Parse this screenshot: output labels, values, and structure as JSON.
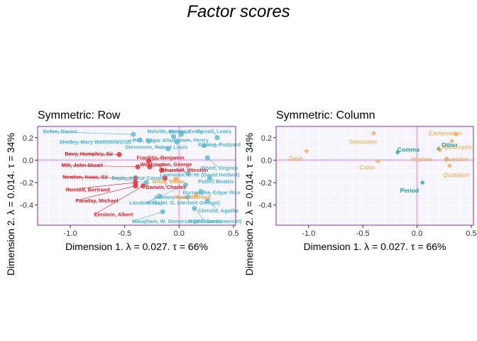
{
  "title": "Factor scores",
  "colors": {
    "author_blue": "#4cb5d0",
    "author_red": "#e8161c",
    "author_orange": "#f1a340",
    "punct_orange": "#f1a340",
    "punct_teal": "#1c9b93",
    "frame": "#7b3294",
    "origin_line": "#e7c8ec",
    "grid": "#ffffff",
    "panel_bg": "#f7f5fc"
  },
  "chart_data": [
    {
      "type": "scatter",
      "title": "Symmetric: Row",
      "xlabel": "Dimension 1.   λ = 0.027.  τ = 66%",
      "ylabel": "Dimension 2.   λ = 0.014.  τ = 34%",
      "xlim": [
        -1.3,
        0.52
      ],
      "ylim": [
        -0.58,
        0.3
      ],
      "xticks": [
        -1.0,
        -0.5,
        0.0,
        0.5
      ],
      "xtick_labels": [
        "-1.0",
        "-0.5",
        "0.0",
        "0.5"
      ],
      "yticks": [
        -0.4,
        -0.2,
        0.0,
        0.2
      ],
      "ytick_labels": [
        "-0.4",
        "-0.2",
        "0.0",
        "0.2"
      ],
      "grid": true,
      "points": [
        {
          "label": "Defoe, Daniel",
          "x": -0.42,
          "y": 0.23,
          "lx": -1.25,
          "ly": 0.255,
          "color": "blue"
        },
        {
          "label": "Melville, Herman",
          "x": -0.05,
          "y": 0.21,
          "lx": -0.1,
          "ly": 0.255,
          "color": "blue"
        },
        {
          "label": "Bronte, Emily",
          "x": 0.02,
          "y": 0.23,
          "lx": 0.06,
          "ly": 0.255,
          "color": "blue"
        },
        {
          "label": "Carroll, Lewis",
          "x": 0.35,
          "y": 0.2,
          "lx": 0.32,
          "ly": 0.255,
          "color": "blue"
        },
        {
          "label": "Shelley, Mary Wollstonecraft",
          "x": -0.36,
          "y": 0.18,
          "lx": -1.1,
          "ly": 0.16,
          "color": "blue"
        },
        {
          "label": "Poe, Edgar Allan",
          "x": -0.28,
          "y": 0.17,
          "lx": -0.23,
          "ly": 0.175,
          "color": "blue"
        },
        {
          "label": "James, Henry",
          "x": -0.02,
          "y": 0.16,
          "lx": 0.11,
          "ly": 0.18,
          "color": "blue"
        },
        {
          "label": "Kipling, Rudyard",
          "x": 0.23,
          "y": 0.13,
          "lx": 0.37,
          "ly": 0.14,
          "color": "blue"
        },
        {
          "label": "Stevenson, Robert Louis",
          "x": -0.1,
          "y": 0.1,
          "lx": -0.21,
          "ly": 0.115,
          "color": "blue"
        },
        {
          "label": "Davy, Humphry, Sir",
          "x": -0.55,
          "y": 0.05,
          "lx": -1.05,
          "ly": 0.055,
          "color": "red"
        },
        {
          "label": "Franklin, Benjamin",
          "x": -0.28,
          "y": -0.01,
          "lx": -0.17,
          "ly": 0.02,
          "color": "red"
        },
        {
          "label": "Washington, George",
          "x": -0.27,
          "y": -0.06,
          "lx": -0.12,
          "ly": -0.04,
          "color": "red"
        },
        {
          "label": "Mill, John Stuart",
          "x": -0.38,
          "y": -0.06,
          "lx": -1.08,
          "ly": -0.045,
          "color": "red"
        },
        {
          "label": "Churchill, Winston",
          "x": -0.16,
          "y": -0.09,
          "lx": 0.05,
          "ly": -0.09,
          "color": "red"
        },
        {
          "label": "Darwin, Charles",
          "x": -0.13,
          "y": -0.16,
          "lx": -0.12,
          "ly": -0.24,
          "color": "red"
        },
        {
          "label": "Newton, Isaac, Sir",
          "x": -0.4,
          "y": -0.16,
          "lx": -1.07,
          "ly": -0.15,
          "color": "red"
        },
        {
          "label": "Russell, Bertrand",
          "x": -0.4,
          "y": -0.2,
          "lx": -1.04,
          "ly": -0.265,
          "color": "red"
        },
        {
          "label": "Doyle, Arthur Conan",
          "x": -0.3,
          "y": -0.2,
          "lx": -0.62,
          "ly": -0.16,
          "color": "blue"
        },
        {
          "label": "Wells, H. G. (Herbert George)",
          "x": 0.06,
          "y": -0.22,
          "lx": -0.3,
          "ly": -0.38,
          "color": "blue"
        },
        {
          "label": "Lawrence, D. H. (David Herbert)",
          "x": 0.08,
          "y": -0.12,
          "lx": 0.19,
          "ly": -0.13,
          "color": "blue"
        },
        {
          "label": "Wilde, Oscar",
          "x": -0.03,
          "y": -0.17,
          "lx": -0.1,
          "ly": -0.19,
          "color": "orange"
        },
        {
          "label": "Faraday, Michael",
          "x": -0.4,
          "y": -0.23,
          "lx": -0.95,
          "ly": -0.36,
          "color": "red"
        },
        {
          "label": "Einstein, Albert",
          "x": -0.33,
          "y": -0.23,
          "lx": -0.78,
          "ly": -0.485,
          "color": "red"
        },
        {
          "label": "Burroughs, Edgar Rice",
          "x": 0.2,
          "y": -0.28,
          "lx": 0.3,
          "ly": -0.29,
          "color": "blue"
        },
        {
          "label": "Asimov, Isaac",
          "x": 0.08,
          "y": -0.33,
          "lx": -0.07,
          "ly": -0.33,
          "color": "blue"
        },
        {
          "label": "Shaw, Bernard",
          "x": 0.16,
          "y": -0.31,
          "lx": 0.12,
          "ly": -0.33,
          "color": "orange"
        },
        {
          "label": "Christie, Agatha",
          "x": 0.26,
          "y": -0.36,
          "lx": 0.36,
          "ly": -0.45,
          "color": "blue"
        },
        {
          "label": "Maugham, W. Somerset (William Somerset)",
          "x": -0.15,
          "y": -0.46,
          "lx": -0.43,
          "ly": -0.545,
          "color": "blue"
        },
        {
          "label": "Joyce, James",
          "x": 0.14,
          "y": -0.43,
          "lx": 0.24,
          "ly": -0.545,
          "color": "blue"
        },
        {
          "label": "Potter, Beatrix",
          "x": 0.28,
          "y": -0.16,
          "lx": 0.34,
          "ly": -0.19,
          "color": "blue"
        },
        {
          "label": "London, Jack",
          "x": -0.18,
          "y": -0.32,
          "lx": -0.3,
          "ly": -0.38,
          "color": "blue"
        },
        {
          "label": "Woolf, Virginia",
          "x": 0.26,
          "y": 0.02,
          "lx": 0.37,
          "ly": -0.07,
          "color": "blue"
        }
      ]
    },
    {
      "type": "scatter",
      "title": "Symmetric: Column",
      "xlabel": "Dimension 1.   λ = 0.027.  τ = 66%",
      "ylabel": "Dimension 2.   λ = 0.014.  τ = 34%",
      "xlim": [
        -1.3,
        0.52
      ],
      "ylim": [
        -0.58,
        0.3
      ],
      "xticks": [
        -1.0,
        -0.5,
        0.0,
        0.5
      ],
      "xtick_labels": [
        "-1.0",
        "-0.5",
        "0.0",
        "0.5"
      ],
      "yticks": [
        -0.4,
        -0.2,
        0.0,
        0.2
      ],
      "ytick_labels": [
        "-0.4",
        "-0.2",
        "0.0",
        "0.2"
      ],
      "grid": true,
      "points": [
        {
          "label": "Dash",
          "x": -1.02,
          "y": 0.08,
          "lx": -1.12,
          "ly": 0.015,
          "color": "orange"
        },
        {
          "label": "Semicolon",
          "x": -0.4,
          "y": 0.24,
          "lx": -0.5,
          "ly": 0.165,
          "color": "orange"
        },
        {
          "label": "Exclamation",
          "x": 0.36,
          "y": 0.23,
          "lx": 0.26,
          "ly": 0.24,
          "color": "orange"
        },
        {
          "label": "Apostrophe",
          "x": 0.32,
          "y": 0.17,
          "lx": 0.37,
          "ly": 0.115,
          "color": "orange"
        },
        {
          "label": "Other",
          "x": 0.2,
          "y": 0.1,
          "lx": 0.3,
          "ly": 0.135,
          "color": "teal"
        },
        {
          "label": "Comma",
          "x": -0.18,
          "y": 0.07,
          "lx": -0.08,
          "ly": 0.095,
          "color": "teal"
        },
        {
          "label": "Hyphen",
          "x": 0.21,
          "y": 0.09,
          "lx": 0.04,
          "ly": 0.01,
          "color": "orange"
        },
        {
          "label": "Question",
          "x": 0.27,
          "y": 0.01,
          "lx": 0.36,
          "ly": 0.01,
          "color": "orange"
        },
        {
          "label": "Colon",
          "x": -0.36,
          "y": -0.01,
          "lx": -0.46,
          "ly": -0.065,
          "color": "orange"
        },
        {
          "label": "Quotation",
          "x": 0.3,
          "y": -0.05,
          "lx": 0.36,
          "ly": -0.13,
          "color": "orange"
        },
        {
          "label": "Period",
          "x": 0.05,
          "y": -0.2,
          "lx": -0.07,
          "ly": -0.27,
          "color": "teal"
        }
      ]
    }
  ]
}
